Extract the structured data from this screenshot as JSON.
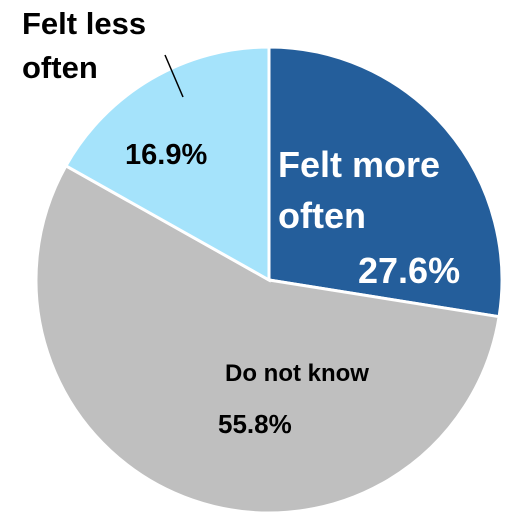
{
  "chart_data": {
    "type": "pie",
    "slices": [
      {
        "name": "Felt more often",
        "value": 27.6,
        "display": "27.6%",
        "color": "#245e9b"
      },
      {
        "name": "Do not know",
        "value": 55.8,
        "display": "55.8%",
        "color": "#bfbfbf"
      },
      {
        "name": "Felt less often",
        "value": 16.9,
        "display": "16.9%",
        "color": "#a5e3fb"
      }
    ],
    "labels": {
      "more_line1": "Felt more",
      "more_line2": "often",
      "dnk": "Do not know",
      "less_line1": "Felt less",
      "less_line2": "often"
    },
    "legend": "none",
    "start_angle": "12 o'clock, clockwise"
  }
}
